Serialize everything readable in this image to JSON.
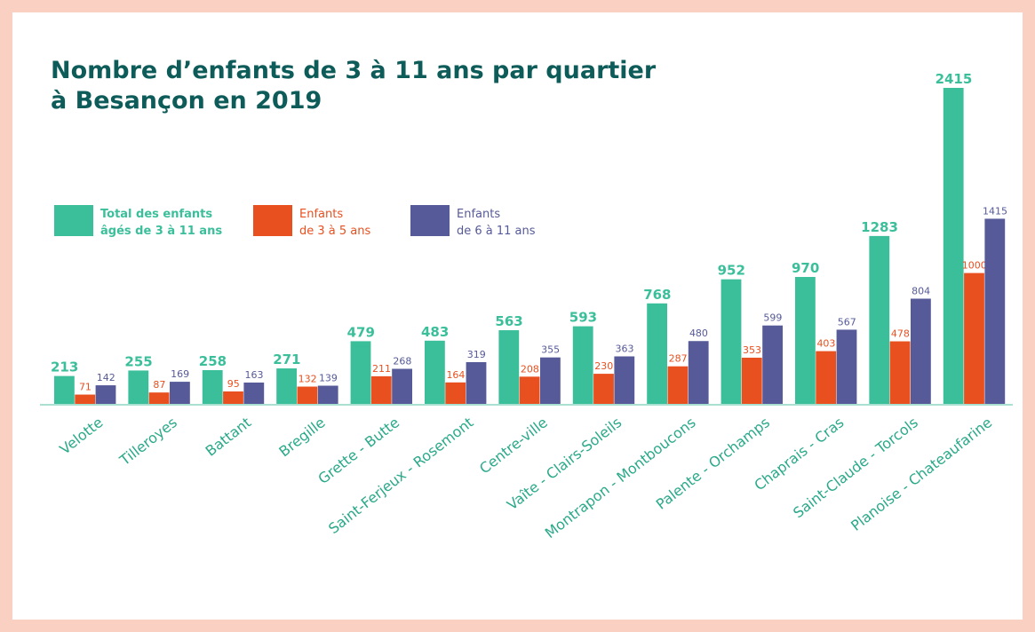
{
  "chart_data": {
    "type": "bar",
    "title": "Nombre d’enfants de 3 à 11 ans par quartier à Besançon en 2019",
    "categories": [
      "Velotte",
      "Tilleroyes",
      "Battant",
      "Bregille",
      "Grette - Butte",
      "Saint-Ferjeux - Rosemont",
      "Centre-ville",
      "Vaîte - Clairs-Soleils",
      "Montrapon - Montboucons",
      "Palente - Orchamps",
      "Chaprais - Cras",
      "Saint-Claude - Torcols",
      "Planoise - Chateaufarine"
    ],
    "series": [
      {
        "name": "Total des enfants âgés de 3 à 11 ans",
        "color": "#3bbf9b",
        "values": [
          213,
          255,
          258,
          271,
          479,
          483,
          563,
          593,
          768,
          952,
          970,
          1283,
          2415
        ]
      },
      {
        "name": "Enfants de 3 à 5 ans",
        "color": "#e8501f",
        "values": [
          71,
          87,
          95,
          132,
          211,
          164,
          208,
          230,
          287,
          353,
          403,
          478,
          1000
        ]
      },
      {
        "name": "Enfants de 6 à 11 ans",
        "color": "#565a98",
        "values": [
          142,
          169,
          163,
          139,
          268,
          319,
          355,
          363,
          480,
          599,
          567,
          804,
          1415
        ]
      }
    ]
  }
}
